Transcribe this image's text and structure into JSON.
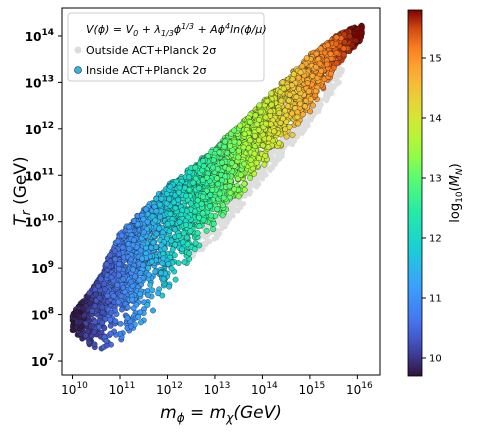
{
  "chart_data": {
    "type": "scatter",
    "xlabel": "m_φ = m_χ(GeV)",
    "ylabel": "T_r (GeV)",
    "x_scale": "log",
    "y_scale": "log",
    "xlim": [
      6000000000.0,
      3e+16
    ],
    "ylim": [
      5000000.0,
      400000000000000.0
    ],
    "x_ticks": [
      "10^10",
      "10^11",
      "10^12",
      "10^13",
      "10^14",
      "10^15",
      "10^16"
    ],
    "y_ticks": [
      "10^7",
      "10^8",
      "10^9",
      "10^10",
      "10^11",
      "10^12",
      "10^13",
      "10^14"
    ],
    "grid": false,
    "legend": {
      "placement": "top-left",
      "formula": "V(ϕ) = V₀ + λ₁/₃ϕ¹ᐟ³ + Aϕ⁴ln(ϕ/μ)",
      "entries": [
        {
          "label": "Outside ACT+Planck 2σ",
          "color": "#dcdcdc"
        },
        {
          "label": "Inside ACT+Planck 2σ",
          "color": "#33b5e5"
        }
      ]
    },
    "colorbar": {
      "label": "log₁₀(M_N)",
      "range": [
        9.7,
        15.8
      ],
      "ticks": [
        "10",
        "11",
        "12",
        "13",
        "14",
        "15"
      ],
      "colormap": "turbo"
    },
    "series": [
      {
        "name": "Inside ACT+Planck 2σ",
        "region_lower_edge": [
          [
            10.0,
            7.6
          ],
          [
            10.5,
            7.2
          ],
          [
            11.0,
            7.2
          ],
          [
            11.5,
            7.6
          ],
          [
            12.0,
            8.4
          ],
          [
            13.0,
            9.8
          ],
          [
            14.0,
            11.1
          ],
          [
            15.0,
            12.3
          ],
          [
            15.7,
            13.5
          ],
          [
            16.1,
            13.9
          ]
        ],
        "region_upper_edge": [
          [
            10.0,
            8.0
          ],
          [
            10.5,
            8.7
          ],
          [
            11.0,
            9.8
          ],
          [
            11.5,
            10.3
          ],
          [
            12.0,
            10.8
          ],
          [
            13.0,
            11.6
          ],
          [
            14.0,
            12.6
          ],
          [
            15.0,
            13.6
          ],
          [
            15.7,
            14.1
          ],
          [
            16.1,
            14.2
          ]
        ],
        "color_mapping": "log10(M_N) ≈ 9.7 + 1.02 × (log10(m_φ) − 10)"
      },
      {
        "name": "Outside ACT+Planck 2σ",
        "region_lower_edge": [
          [
            12.5,
            9.2
          ],
          [
            13.0,
            9.6
          ],
          [
            14.0,
            10.9
          ],
          [
            15.0,
            12.1
          ],
          [
            15.7,
            13.1
          ]
        ],
        "region_upper_edge": [
          [
            12.5,
            9.6
          ],
          [
            13.0,
            10.1
          ],
          [
            14.0,
            11.3
          ],
          [
            15.0,
            12.5
          ],
          [
            15.7,
            13.5
          ]
        ]
      }
    ]
  }
}
